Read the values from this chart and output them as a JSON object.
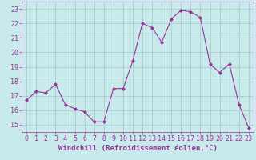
{
  "x": [
    0,
    1,
    2,
    3,
    4,
    5,
    6,
    7,
    8,
    9,
    10,
    11,
    12,
    13,
    14,
    15,
    16,
    17,
    18,
    19,
    20,
    21,
    22,
    23
  ],
  "y": [
    16.7,
    17.3,
    17.2,
    17.8,
    16.4,
    16.1,
    15.9,
    15.2,
    15.2,
    17.5,
    17.5,
    19.4,
    22.0,
    21.7,
    20.7,
    22.3,
    22.9,
    22.8,
    22.4,
    19.2,
    18.6,
    19.2,
    16.4,
    14.8
  ],
  "line_color": "#993399",
  "marker_color": "#993399",
  "bg_color": "#c8eaea",
  "grid_color": "#a0c8c8",
  "xlabel": "Windchill (Refroidissement éolien,°C)",
  "ylim": [
    14.5,
    23.5
  ],
  "xlim": [
    -0.5,
    23.5
  ],
  "yticks": [
    15,
    16,
    17,
    18,
    19,
    20,
    21,
    22,
    23
  ],
  "xticks": [
    0,
    1,
    2,
    3,
    4,
    5,
    6,
    7,
    8,
    9,
    10,
    11,
    12,
    13,
    14,
    15,
    16,
    17,
    18,
    19,
    20,
    21,
    22,
    23
  ],
  "tick_color": "#993399",
  "axis_color": "#993399",
  "xlabel_fontsize": 6.5,
  "tick_fontsize": 6.0
}
